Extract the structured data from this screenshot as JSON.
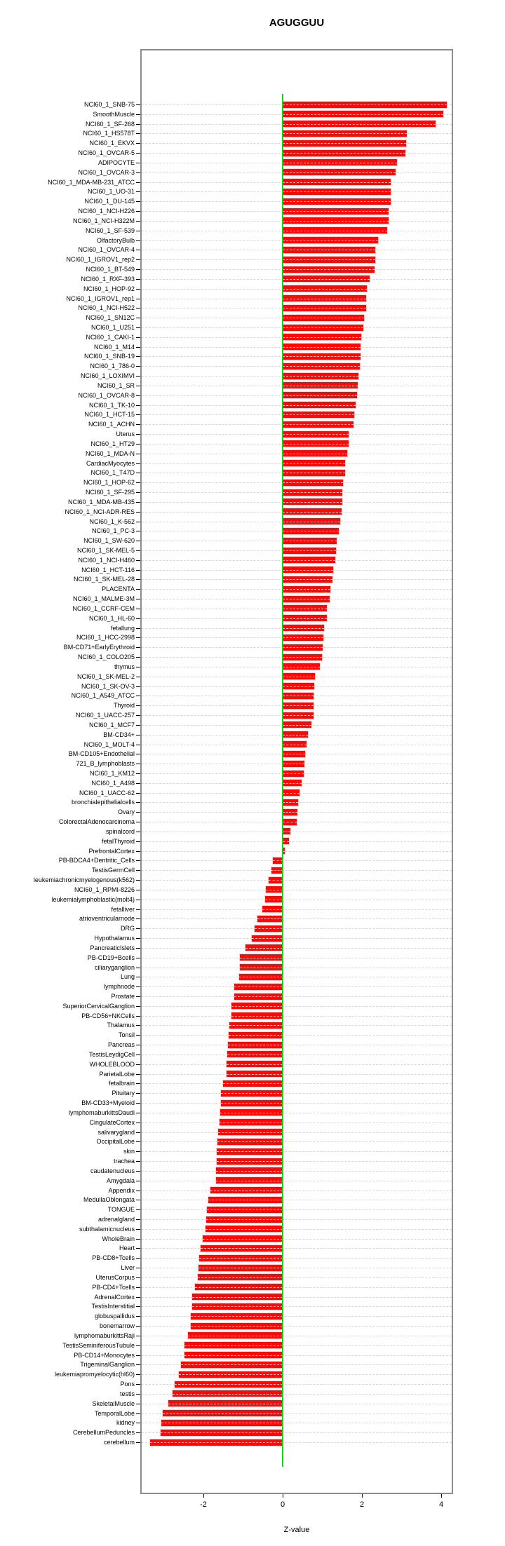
{
  "title": "AGUGGUU",
  "chart_data": {
    "type": "bar",
    "orientation": "horizontal",
    "title": "AGUGGUU",
    "xlabel": "Z-value",
    "x_ticks": [
      -2,
      0,
      2,
      4
    ],
    "xlim": [
      -3.6,
      4.3
    ],
    "grid": true,
    "bar_color": "#fb0807",
    "zero_line_color": "#19d119",
    "categories": [
      "NCI60_1_SNB-75",
      "SmoothMuscle",
      "NCI60_1_SF-268",
      "NCI60_1_HS578T",
      "NCI60_1_EKVX",
      "NCI60_1_OVCAR-5",
      "ADIPOCYTE",
      "NCI60_1_OVCAR-3",
      "NCI60_1_MDA-MB-231_ATCC",
      "NCI60_1_UO-31",
      "NCI60_1_DU-145",
      "NCI60_1_NCI-H226",
      "NCI60_1_NCI-H322M",
      "NCI60_1_SF-539",
      "OlfactoryBulb",
      "NCI60_1_OVCAR-4",
      "NCI60_1_IGROV1_rep2",
      "NCI60_1_BT-549",
      "NCI60_1_RXF-393",
      "NCI60_1_HOP-92",
      "NCI60_1_IGROV1_rep1",
      "NCI60_1_NCI-H522",
      "NCI60_1_SN12C",
      "NCI60_1_U251",
      "NCI60_1_CAKI-1",
      "NCI60_1_M14",
      "NCI60_1_SNB-19",
      "NCI60_1_786-0",
      "NCI60_1_LOXIMVI",
      "NCI60_1_SR",
      "NCI60_1_OVCAR-8",
      "NCI60_1_TK-10",
      "NCI60_1_HCT-15",
      "NCI60_1_ACHN",
      "Uterus",
      "NCI60_1_HT29",
      "NCI60_1_MDA-N",
      "CardiacMyocytes",
      "NCI60_1_T47D",
      "NCI60_1_HOP-62",
      "NCI60_1_SF-295",
      "NCI60_1_MDA-MB-435",
      "NCI60_1_NCI-ADR-RES",
      "NCI60_1_K-562",
      "NCI60_1_PC-3",
      "NCI60_1_SW-620",
      "NCI60_1_SK-MEL-5",
      "NCI60_1_NCI-H460",
      "NCI60_1_HCT-116",
      "NCI60_1_SK-MEL-28",
      "PLACENTA",
      "NCI60_1_MALME-3M",
      "NCI60_1_CCRF-CEM",
      "NCI60_1_HL-60",
      "fetallung",
      "NCI60_1_HCC-2998",
      "BM-CD71+EarlyErythroid",
      "NCI60_1_COLO205",
      "thymus",
      "NCI60_1_SK-MEL-2",
      "NCI60_1_SK-OV-3",
      "NCI60_1_A549_ATCC",
      "Thyroid",
      "NCI60_1_UACC-257",
      "NCI60_1_MCF7",
      "BM-CD34+",
      "NCI60_1_MOLT-4",
      "BM-CD105+Endothelial",
      "721_B_lymphoblasts",
      "NCI60_1_KM12",
      "NCI60_1_A498",
      "NCI60_1_UACC-62",
      "bronchialepithelialcells",
      "Ovary",
      "ColorectalAdenocarcinoma",
      "spinalcord",
      "fetalThyroid",
      "PrefrontalCortex",
      "PB-BDCA4+Dentritic_Cells",
      "TestisGermCell",
      "leukemiachronicmyelogenous(k562)",
      "NCI60_1_RPMI-8226",
      "leukemialymphoblastic(molt4)",
      "fetalliver",
      "atrioventricularnode",
      "DRG",
      "Hypothalamus",
      "PancreaticIslets",
      "PB-CD19+Bcells",
      "ciliaryganglion",
      "Lung",
      "lymphnode",
      "Prostate",
      "SuperiorCervicalGanglion",
      "PB-CD56+NKCells",
      "Thalamus",
      "Tonsil",
      "Pancreas",
      "TestisLeydigCell",
      "WHOLEBLOOD",
      "ParietalLobe",
      "fetalbrain",
      "Pituitary",
      "BM-CD33+Myeloid",
      "lymphomaburkittsDaudi",
      "CingulateCortex",
      "salivarygland",
      "OccipitalLobe",
      "skin",
      "trachea",
      "caudatenucleus",
      "Amygdala",
      "Appendix",
      "MedullaOblongata",
      "TONGUE",
      "adrenalgland",
      "subthalamicnucleus",
      "WholeBrain",
      "Heart",
      "PB-CD8+Tcells",
      "Liver",
      "UterusCorpus",
      "PB-CD4+Tcells",
      "AdrenalCortex",
      "TestisInterstitial",
      "globuspallidus",
      "bonemarrow",
      "lymphomaburkittsRaji",
      "TestisSeminiferousTubule",
      "PB-CD14+Monocytes",
      "TrigeminalGanglion",
      "leukemiapromyelocytic(hl60)",
      "Pons",
      "testis",
      "SkeletalMuscle",
      "TemporalLobe",
      "kidney",
      "CerebellumPeduncles",
      "cerebellum"
    ],
    "values": [
      4.14,
      4.05,
      3.85,
      3.14,
      3.11,
      3.09,
      2.88,
      2.85,
      2.73,
      2.72,
      2.72,
      2.68,
      2.67,
      2.63,
      2.41,
      2.34,
      2.33,
      2.31,
      2.2,
      2.12,
      2.11,
      2.1,
      2.05,
      2.04,
      1.98,
      1.97,
      1.96,
      1.95,
      1.91,
      1.9,
      1.87,
      1.84,
      1.8,
      1.79,
      1.67,
      1.66,
      1.63,
      1.58,
      1.57,
      1.52,
      1.51,
      1.5,
      1.49,
      1.45,
      1.41,
      1.37,
      1.34,
      1.32,
      1.27,
      1.26,
      1.2,
      1.18,
      1.12,
      1.11,
      1.04,
      1.03,
      1.0,
      0.99,
      0.94,
      0.82,
      0.79,
      0.78,
      0.78,
      0.77,
      0.73,
      0.63,
      0.6,
      0.57,
      0.54,
      0.53,
      0.48,
      0.42,
      0.39,
      0.37,
      0.36,
      0.19,
      0.16,
      0.06,
      -0.24,
      -0.29,
      -0.35,
      -0.42,
      -0.45,
      -0.51,
      -0.63,
      -0.71,
      -0.77,
      -0.94,
      -1.08,
      -1.08,
      -1.09,
      -1.22,
      -1.23,
      -1.29,
      -1.3,
      -1.35,
      -1.37,
      -1.38,
      -1.4,
      -1.41,
      -1.42,
      -1.5,
      -1.55,
      -1.56,
      -1.57,
      -1.6,
      -1.63,
      -1.64,
      -1.66,
      -1.67,
      -1.68,
      -1.69,
      -1.83,
      -1.88,
      -1.92,
      -1.93,
      -1.95,
      -2.02,
      -2.07,
      -2.11,
      -2.13,
      -2.15,
      -2.21,
      -2.28,
      -2.29,
      -2.31,
      -2.32,
      -2.39,
      -2.47,
      -2.48,
      -2.56,
      -2.62,
      -2.72,
      -2.78,
      -2.88,
      -3.03,
      -3.06,
      -3.08,
      -3.34
    ]
  }
}
